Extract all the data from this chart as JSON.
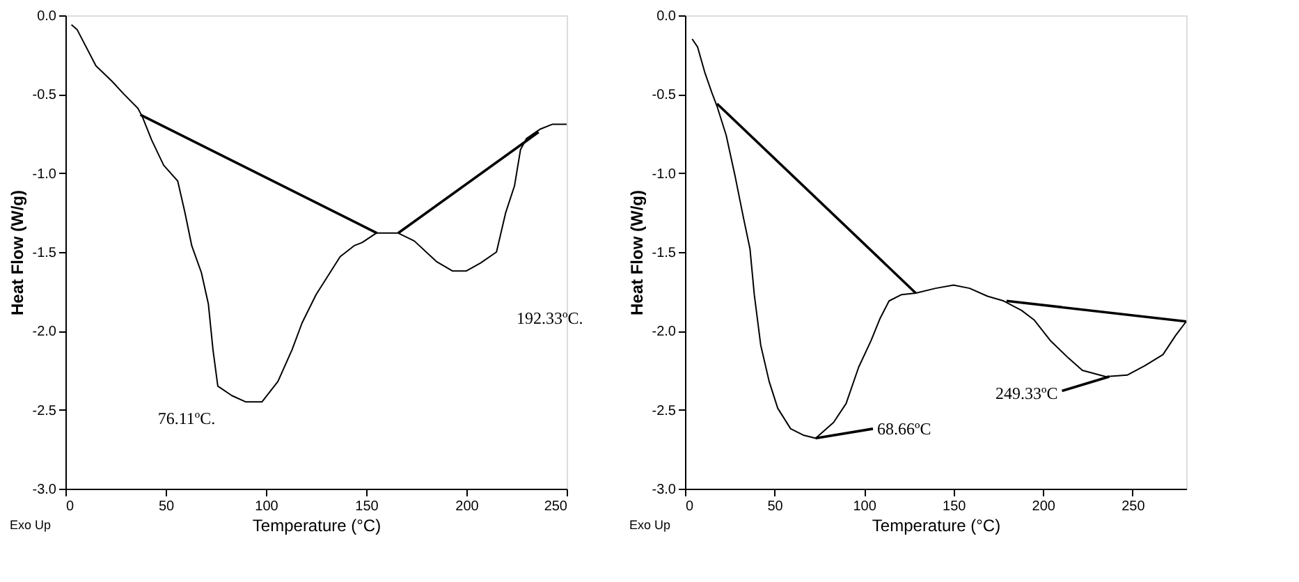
{
  "chart_data": [
    {
      "type": "line",
      "xlabel": "Temperature (°C)",
      "ylabel": "Heat Flow (W/g)",
      "xlim": [
        0,
        250
      ],
      "ylim": [
        -3.0,
        0.0
      ],
      "xticks": [
        0,
        50,
        100,
        150,
        200,
        250
      ],
      "yticks": [
        {
          "value": -3.0,
          "label": "-3.0"
        },
        {
          "value": -2.5,
          "label": "-2.5"
        },
        {
          "value": -2.0,
          "label": "-2.0"
        },
        {
          "value": -1.5,
          "label": "-1.5"
        },
        {
          "value": -1.0,
          "label": "-1.0"
        },
        {
          "value": -0.5,
          "label": "-0.5"
        },
        {
          "value": 0.0,
          "label": "0.0"
        }
      ],
      "grid": false,
      "marker": "none",
      "line_style": "solid",
      "series": [
        {
          "color": "#000000",
          "x": [
            3,
            5.8,
            15.2,
            23.4,
            29.2,
            36.2,
            38.6,
            43,
            49,
            56,
            59.6,
            63,
            67.8,
            71.3,
            73.6,
            76,
            83,
            90,
            98,
            106,
            113,
            118,
            125,
            132,
            137,
            144,
            148,
            155,
            166,
            174,
            185,
            193,
            200,
            207,
            215,
            219.6,
            224,
            227,
            230,
            237,
            243,
            250
          ],
          "values": [
            -0.06,
            -0.09,
            -0.32,
            -0.42,
            -0.5,
            -0.59,
            -0.65,
            -0.79,
            -0.95,
            -1.05,
            -1.25,
            -1.46,
            -1.63,
            -1.83,
            -2.12,
            -2.35,
            -2.41,
            -2.45,
            -2.45,
            -2.32,
            -2.12,
            -1.95,
            -1.77,
            -1.63,
            -1.53,
            -1.46,
            -1.44,
            -1.38,
            -1.38,
            -1.43,
            -1.56,
            -1.62,
            -1.62,
            -1.57,
            -1.5,
            -1.25,
            -1.08,
            -0.85,
            -0.78,
            -0.72,
            -0.69,
            -0.69
          ]
        },
        {
          "color": "#000000",
          "x": [
            37.4,
            155.4
          ],
          "values": [
            -0.63,
            -1.38
          ]
        },
        {
          "color": "#000000",
          "x": [
            166,
            236
          ],
          "values": [
            -1.38,
            -0.74
          ]
        }
      ],
      "annotations": [
        {
          "text": "76.11ºC.",
          "x": 90,
          "y": -2.45
        },
        "192.33ºC.",
        "Exo Up"
      ]
    },
    {
      "type": "line",
      "xlabel": "Temperature (°C)",
      "ylabel": "Heat Flow (W/g)",
      "xlim": [
        0,
        280
      ],
      "ylim": [
        -3.0,
        0.0
      ],
      "xticks": [
        0,
        50,
        100,
        150,
        200,
        250
      ],
      "yticks": [
        {
          "value": -3.0,
          "label": "-3.0"
        },
        {
          "value": -2.5,
          "label": "-2.5"
        },
        {
          "value": -2.0,
          "label": "-2.0"
        },
        {
          "value": -1.5,
          "label": "-1.5"
        },
        {
          "value": -1.0,
          "label": "-1.0"
        },
        {
          "value": -0.5,
          "label": "-0.5"
        },
        {
          "value": 0.0,
          "label": "0.0"
        }
      ],
      "grid": false,
      "marker": "none",
      "line_style": "solid",
      "series": [
        {
          "color": "#000000",
          "x": [
            4,
            7,
            11,
            15,
            18,
            23,
            28,
            32.6,
            36.3,
            38.7,
            42.3,
            47,
            51.8,
            59,
            66,
            73,
            83,
            90,
            97,
            104,
            109,
            114,
            121,
            129,
            140,
            150,
            159,
            169,
            178,
            188,
            195,
            204,
            214,
            222,
            235,
            247,
            257,
            267,
            274,
            280
          ],
          "values": [
            -0.15,
            -0.2,
            -0.36,
            -0.49,
            -0.58,
            -0.76,
            -1.02,
            -1.28,
            -1.48,
            -1.77,
            -2.09,
            -2.32,
            -2.49,
            -2.62,
            -2.66,
            -2.68,
            -2.58,
            -2.46,
            -2.23,
            -2.06,
            -1.92,
            -1.81,
            -1.77,
            -1.76,
            -1.73,
            -1.71,
            -1.73,
            -1.78,
            -1.81,
            -1.87,
            -1.93,
            -2.06,
            -2.17,
            -2.25,
            -2.29,
            -2.28,
            -2.22,
            -2.15,
            -2.03,
            -1.94
          ]
        },
        {
          "color": "#000000",
          "x": [
            17.9,
            128.9
          ],
          "values": [
            -0.56,
            -1.76
          ]
        },
        {
          "color": "#000000",
          "x": [
            179.6,
            280
          ],
          "values": [
            -1.81,
            -1.94
          ]
        },
        {
          "color": "#000000",
          "x": [
            73,
            105
          ],
          "values": [
            -2.68,
            -2.62
          ]
        },
        {
          "color": "#000000",
          "x": [
            210.6,
            237
          ],
          "values": [
            -2.38,
            -2.29
          ]
        }
      ],
      "annotations": [
        {
          "text": "68.66ºC",
          "x": 105,
          "y": -2.62
        },
        {
          "text": "249.33ºC",
          "x": 210.6,
          "y": -2.38
        },
        "Exo Up"
      ]
    }
  ]
}
